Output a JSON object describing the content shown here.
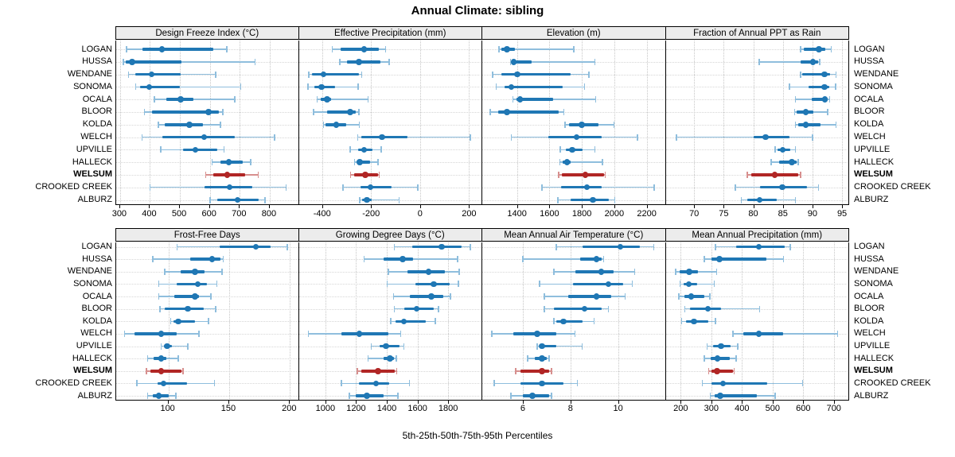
{
  "title": "Annual Climate: sibling",
  "caption": "5th-25th-50th-75th-95th Percentiles",
  "stations": [
    "LOGAN",
    "HUSSA",
    "WENDANE",
    "SONOMA",
    "OCALA",
    "BLOOR",
    "KOLDA",
    "WELCH",
    "UPVILLE",
    "HALLECK",
    "WELSUM",
    "CROOKED CREEK",
    "ALBURZ"
  ],
  "highlight_station": "WELSUM",
  "colors": {
    "series": "#1F77B4",
    "series_light": "#8FBEDD",
    "highlight": "#B12625",
    "highlight_light": "#D78F8E",
    "strip_bg": "#ECECEC",
    "grid_v": "#C6C6C6",
    "grid_h": "#D6D6D6",
    "border": "#000000"
  },
  "chart_data": {
    "type": "dotplot-percentiles",
    "percentile_labels": [
      "5th",
      "25th",
      "50th",
      "75th",
      "95th"
    ],
    "legend_note": "thin line = 5th-95th, thick bar = 25th-75th, dot = 50th percentile",
    "panels": [
      {
        "id": "design-freeze-index",
        "title": "Design Freeze Index (°C)",
        "row": 0,
        "col": 0,
        "xlim": [
          287,
          900
        ],
        "ticks": [
          300,
          400,
          500,
          600,
          700,
          800
        ],
        "values": [
          [
            322,
            376,
            440,
            612,
            657
          ],
          [
            311,
            318,
            340,
            505,
            751
          ],
          [
            328,
            350,
            405,
            503,
            620
          ],
          [
            352,
            368,
            398,
            500,
            703
          ],
          [
            415,
            455,
            503,
            545,
            683
          ],
          [
            382,
            407,
            595,
            630,
            644
          ],
          [
            428,
            448,
            532,
            577,
            635
          ],
          [
            373,
            441,
            581,
            682,
            816
          ],
          [
            436,
            510,
            552,
            626,
            648
          ],
          [
            608,
            635,
            663,
            710,
            737
          ],
          [
            586,
            612,
            658,
            718,
            762
          ],
          [
            400,
            581,
            666,
            742,
            855
          ],
          [
            601,
            626,
            693,
            764,
            784
          ]
        ]
      },
      {
        "id": "effective-precipitation",
        "title": "Effective Precipitation (mm)",
        "row": 0,
        "col": 1,
        "xlim": [
          -495,
          254
        ],
        "ticks": [
          -400,
          -200,
          0,
          200
        ],
        "values": [
          [
            -358,
            -326,
            -228,
            -170,
            -141
          ],
          [
            -328,
            -300,
            -250,
            -161,
            -126
          ],
          [
            -455,
            -441,
            -395,
            -250,
            -238
          ],
          [
            -457,
            -433,
            -402,
            -346,
            -253
          ],
          [
            -420,
            -406,
            -380,
            -362,
            -213
          ],
          [
            -435,
            -380,
            -286,
            -261,
            -250
          ],
          [
            -395,
            -385,
            -343,
            -302,
            -248
          ],
          [
            -255,
            -240,
            -155,
            -50,
            205
          ],
          [
            -286,
            -254,
            -228,
            -193,
            -159
          ],
          [
            -267,
            -257,
            -246,
            -204,
            -172
          ],
          [
            -283,
            -268,
            -224,
            -172,
            -166
          ],
          [
            -315,
            -242,
            -202,
            -117,
            -10
          ],
          [
            -246,
            -238,
            -217,
            -198,
            -85
          ]
        ]
      },
      {
        "id": "elevation",
        "title": "Elevation (m)",
        "row": 0,
        "col": 2,
        "xlim": [
          1186,
          2317
        ],
        "ticks": [
          1400,
          1600,
          1800,
          2000,
          2200
        ],
        "values": [
          [
            1289,
            1305,
            1338,
            1387,
            1751
          ],
          [
            1359,
            1368,
            1379,
            1490,
            1880
          ],
          [
            1251,
            1305,
            1403,
            1730,
            1844
          ],
          [
            1273,
            1322,
            1366,
            1681,
            1816
          ],
          [
            1376,
            1395,
            1420,
            1624,
            1885
          ],
          [
            1235,
            1284,
            1338,
            1656,
            1689
          ],
          [
            1697,
            1722,
            1800,
            1901,
            1999
          ],
          [
            1366,
            1594,
            1767,
            1921,
            2143
          ],
          [
            1668,
            1700,
            1741,
            1803,
            1880
          ],
          [
            1665,
            1681,
            1709,
            1730,
            1926
          ],
          [
            1658,
            1675,
            1822,
            1935,
            1945
          ],
          [
            1553,
            1673,
            1831,
            1922,
            2247
          ],
          [
            1653,
            1730,
            1869,
            1966,
            2002
          ]
        ]
      },
      {
        "id": "fraction-annual-ppt-rain",
        "title": "Fraction of Annual PPT as Rain",
        "row": 0,
        "col": 3,
        "xlim": [
          65.2,
          96.2
        ],
        "ticks": [
          70,
          75,
          80,
          85,
          90,
          95
        ],
        "values": [
          [
            88.0,
            88.5,
            91.1,
            92.1,
            93.2
          ],
          [
            81.0,
            88.0,
            90.1,
            90.9,
            91.2
          ],
          [
            88.0,
            88.3,
            92.0,
            93.0,
            94.0
          ],
          [
            86.1,
            89.4,
            92.0,
            92.9,
            93.9
          ],
          [
            87.1,
            89.9,
            92.1,
            92.6,
            92.9
          ],
          [
            87.0,
            87.3,
            88.9,
            90.1,
            92.6
          ],
          [
            87.1,
            87.6,
            88.9,
            91.3,
            94.0
          ],
          [
            67.0,
            80.0,
            82.1,
            86.1,
            90.0
          ],
          [
            83.7,
            84.1,
            85.0,
            86.2,
            87.1
          ],
          [
            83.0,
            84.4,
            86.5,
            87.3,
            87.6
          ],
          [
            79.0,
            79.7,
            83.6,
            87.6,
            88.0
          ],
          [
            77.0,
            81.1,
            84.9,
            89.1,
            91.0
          ],
          [
            78.0,
            79.0,
            81.1,
            84.0,
            87.1
          ]
        ]
      },
      {
        "id": "frost-free-days",
        "title": "Frost-Free Days",
        "row": 1,
        "col": 0,
        "xlim": [
          57,
          208
        ],
        "ticks": [
          100,
          150,
          200
        ],
        "values": [
          [
            107,
            142,
            172,
            184,
            198
          ],
          [
            87,
            118,
            136,
            143,
            145
          ],
          [
            97,
            110,
            122,
            130,
            144
          ],
          [
            92,
            107,
            124,
            132,
            140
          ],
          [
            92,
            105,
            122,
            125,
            135
          ],
          [
            93,
            97,
            116,
            129,
            139
          ],
          [
            102,
            104,
            108,
            122,
            133
          ],
          [
            64,
            72,
            94,
            107,
            125
          ],
          [
            94,
            96,
            99,
            103,
            116
          ],
          [
            83,
            88,
            94,
            98,
            108
          ],
          [
            82,
            85,
            94,
            111,
            112
          ],
          [
            74,
            91,
            96,
            115,
            138
          ],
          [
            83,
            87,
            92,
            100,
            106
          ]
        ]
      },
      {
        "id": "growing-degree-days",
        "title": "Growing Degree Days (°C)",
        "row": 1,
        "col": 1,
        "xlim": [
          827,
          2022
        ],
        "ticks": [
          1000,
          1200,
          1400,
          1600,
          1800
        ],
        "values": [
          [
            1450,
            1568,
            1758,
            1888,
            1945
          ],
          [
            1253,
            1380,
            1504,
            1570,
            1860
          ],
          [
            1409,
            1533,
            1672,
            1776,
            1871
          ],
          [
            1403,
            1585,
            1706,
            1810,
            1866
          ],
          [
            1443,
            1551,
            1689,
            1767,
            1814
          ],
          [
            1450,
            1512,
            1594,
            1706,
            1738
          ],
          [
            1426,
            1455,
            1512,
            1654,
            1715
          ],
          [
            889,
            1104,
            1222,
            1412,
            1490
          ],
          [
            1300,
            1352,
            1395,
            1485,
            1512
          ],
          [
            1277,
            1377,
            1421,
            1447,
            1461
          ],
          [
            1208,
            1232,
            1343,
            1450,
            1464
          ],
          [
            1104,
            1218,
            1329,
            1416,
            1547
          ],
          [
            1156,
            1196,
            1270,
            1381,
            1473
          ]
        ]
      },
      {
        "id": "mean-annual-air-temperature",
        "title": "Mean Annual Air Temperature (°C)",
        "row": 1,
        "col": 2,
        "xlim": [
          4.3,
          12.0
        ],
        "ticks": [
          6,
          8,
          10
        ],
        "values": [
          [
            7.4,
            8.5,
            10.1,
            10.9,
            11.5
          ],
          [
            6.0,
            8.4,
            9.1,
            9.3,
            9.4
          ],
          [
            7.3,
            8.2,
            9.3,
            9.8,
            10.7
          ],
          [
            6.7,
            8.1,
            9.6,
            10.2,
            10.6
          ],
          [
            6.9,
            7.9,
            9.1,
            9.7,
            10.3
          ],
          [
            6.9,
            7.3,
            8.6,
            9.3,
            9.6
          ],
          [
            7.3,
            7.4,
            7.7,
            8.5,
            9.0
          ],
          [
            4.7,
            5.6,
            6.6,
            7.4,
            8.2
          ],
          [
            6.6,
            6.7,
            6.8,
            7.4,
            8.5
          ],
          [
            6.2,
            6.5,
            6.8,
            7.0,
            7.1
          ],
          [
            5.7,
            5.9,
            6.8,
            7.1,
            7.2
          ],
          [
            4.8,
            5.9,
            6.8,
            7.7,
            8.3
          ],
          [
            5.5,
            6.0,
            6.4,
            7.1,
            7.2
          ]
        ]
      },
      {
        "id": "mean-annual-precipitation",
        "title": "Mean Annual Precipitation (mm)",
        "row": 1,
        "col": 3,
        "xlim": [
          151,
          750
        ],
        "ticks": [
          200,
          300,
          400,
          500,
          600,
          700
        ],
        "values": [
          [
            314,
            380,
            455,
            540,
            558
          ],
          [
            277,
            300,
            326,
            480,
            535
          ],
          [
            183,
            197,
            228,
            257,
            317
          ],
          [
            198,
            209,
            226,
            254,
            310
          ],
          [
            194,
            211,
            234,
            277,
            295
          ],
          [
            214,
            231,
            289,
            332,
            458
          ],
          [
            203,
            217,
            243,
            289,
            314
          ],
          [
            370,
            405,
            455,
            535,
            712
          ],
          [
            286,
            306,
            332,
            362,
            386
          ],
          [
            277,
            297,
            320,
            360,
            381
          ],
          [
            291,
            301,
            319,
            370,
            375
          ],
          [
            271,
            300,
            338,
            482,
            598
          ],
          [
            297,
            310,
            329,
            448,
            508
          ]
        ]
      }
    ]
  }
}
